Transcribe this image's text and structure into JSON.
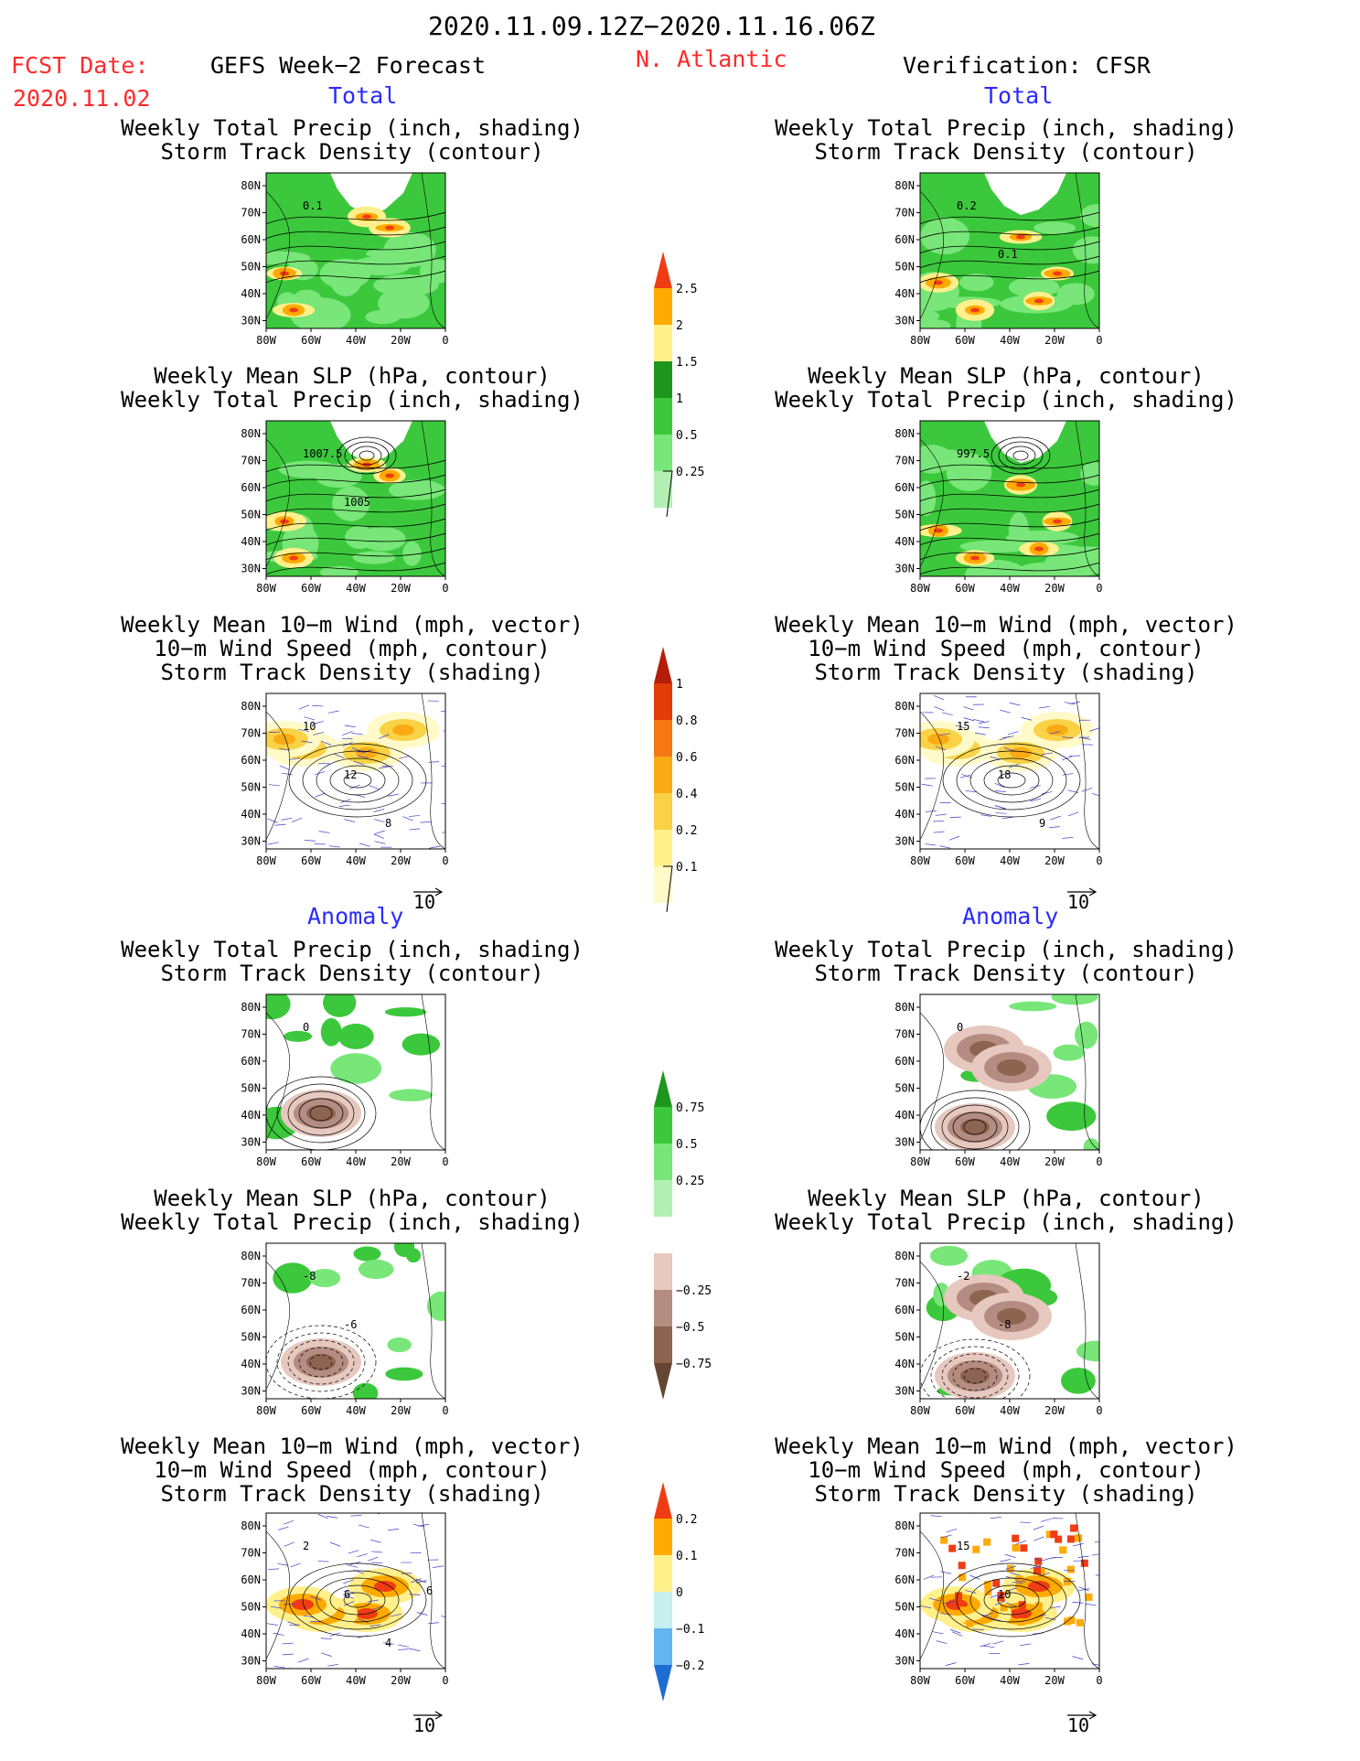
{
  "header": {
    "period": "2020.11.09.12Z−2020.11.16.06Z",
    "fcst_label": "FCST Date:",
    "fcst_date": "2020.11.02",
    "left_title": "GEFS Week−2 Forecast",
    "region": "N. Atlantic",
    "right_title": "Verification: CFSR",
    "total": "Total",
    "anomaly": "Anomaly"
  },
  "axes": {
    "lat_ticks": [
      "80N",
      "70N",
      "60N",
      "50N",
      "40N",
      "30N"
    ],
    "lon_ticks": [
      "80W",
      "60W",
      "40W",
      "20W",
      "0"
    ]
  },
  "vector_ref": "10",
  "panels": [
    {
      "id": "fc-tot-precip-track",
      "title": "Weekly Total Precip (inch, shading)\nStorm Track Density (contour)",
      "kind": "precip",
      "labels": [
        "0.1"
      ]
    },
    {
      "id": "fc-tot-slp-precip",
      "title": "Weekly Mean SLP (hPa, contour)\nWeekly Total Precip (inch, shading)",
      "kind": "slp",
      "labels": [
        "1007.5",
        "1005"
      ]
    },
    {
      "id": "fc-tot-wind-track",
      "title": "Weekly Mean 10−m Wind (mph, vector)\n10−m Wind Speed (mph, contour)\nStorm Track Density (shading)",
      "kind": "wind",
      "labels": [
        "10",
        "12",
        "8"
      ]
    },
    {
      "id": "vf-tot-precip-track",
      "title": "Weekly Total Precip (inch, shading)\nStorm Track Density (contour)",
      "kind": "precip",
      "labels": [
        "0.2",
        "0.1"
      ]
    },
    {
      "id": "vf-tot-slp-precip",
      "title": "Weekly Mean SLP (hPa, contour)\nWeekly Total Precip (inch, shading)",
      "kind": "slp",
      "labels": [
        "997.5"
      ]
    },
    {
      "id": "vf-tot-wind-track",
      "title": "Weekly Mean 10−m Wind (mph, vector)\n10−m Wind Speed (mph, contour)\nStorm Track Density (shading)",
      "kind": "wind",
      "labels": [
        "15",
        "18",
        "9"
      ]
    },
    {
      "id": "fc-anom-precip-track",
      "title": "Weekly Total Precip (inch, shading)\nStorm Track Density (contour)",
      "kind": "aprecip",
      "labels": [
        "0"
      ]
    },
    {
      "id": "fc-anom-slp-precip",
      "title": "Weekly Mean SLP (hPa, contour)\nWeekly Total Precip (inch, shading)",
      "kind": "aslp",
      "labels": [
        "-8",
        "-6"
      ]
    },
    {
      "id": "fc-anom-wind-track",
      "title": "Weekly Mean 10−m Wind (mph, vector)\n10−m Wind Speed (mph, contour)\nStorm Track Density (shading)",
      "kind": "awind",
      "labels": [
        "2",
        "6",
        "4",
        "6"
      ]
    },
    {
      "id": "vf-anom-precip-track",
      "title": "Weekly Total Precip (inch, shading)\nStorm Track Density (contour)",
      "kind": "aprecip",
      "labels": [
        "0"
      ]
    },
    {
      "id": "vf-anom-slp-precip",
      "title": "Weekly Mean SLP (hPa, contour)\nWeekly Total Precip (inch, shading)",
      "kind": "aslp",
      "labels": [
        "-2",
        "-8"
      ]
    },
    {
      "id": "vf-anom-wind-track",
      "title": "Weekly Mean 10−m Wind (mph, vector)\n10−m Wind Speed (mph, contour)\nStorm Track Density (shading)",
      "kind": "awind",
      "labels": [
        "15",
        "10"
      ]
    }
  ],
  "colorbars": [
    {
      "id": "precip-total",
      "levels": [
        "0.25",
        "0.5",
        "1",
        "1.5",
        "2",
        "2.5"
      ],
      "colors": [
        "#b4f0b4",
        "#78e678",
        "#3cc83c",
        "#1e961e",
        "#fff08c",
        "#ffaa00",
        "#f03c14"
      ],
      "tail": true
    },
    {
      "id": "track-total",
      "levels": [
        "0.1",
        "0.2",
        "0.4",
        "0.6",
        "0.8",
        "1"
      ],
      "colors": [
        "#fffac8",
        "#fff08c",
        "#fad246",
        "#faaa14",
        "#f57814",
        "#e13c0a",
        "#b41e0a"
      ],
      "tail": true
    },
    {
      "id": "precip-anom",
      "levels": [
        "0.75",
        "0.5",
        "0.25",
        "−0.25",
        "−0.5",
        "−0.75"
      ],
      "colors": [
        "#1e961e",
        "#3cc83c",
        "#78e678",
        "#b4f0b4",
        "#ffffff",
        "#e6c8be",
        "#b48c82",
        "#8c6450",
        "#644632"
      ]
    },
    {
      "id": "track-anom",
      "levels": [
        "0.2",
        "0.1",
        "0",
        "−0.1",
        "−0.2"
      ],
      "colors": [
        "#f03c14",
        "#ffaa00",
        "#fff08c",
        "#c8f0f0",
        "#64b4f0",
        "#1e6ed2"
      ]
    }
  ],
  "chart_data": [
    {
      "type": "heatmap",
      "panel": "fc-tot-precip-track",
      "variable": "weekly total precip",
      "units": "inch",
      "note": "forecast total"
    },
    {
      "type": "heatmap",
      "panel": "fc-tot-slp-precip",
      "variable": "weekly mean SLP / precip",
      "units": "hPa / inch"
    },
    {
      "type": "heatmap",
      "panel": "fc-tot-wind-track",
      "variable": "10-m wind / storm track density",
      "units": "mph"
    },
    {
      "type": "heatmap",
      "panel": "vf-tot-precip-track",
      "variable": "weekly total precip",
      "units": "inch"
    },
    {
      "type": "heatmap",
      "panel": "vf-tot-slp-precip",
      "variable": "weekly mean SLP / precip",
      "units": "hPa / inch"
    },
    {
      "type": "heatmap",
      "panel": "vf-tot-wind-track",
      "variable": "10-m wind / storm track density",
      "units": "mph"
    },
    {
      "type": "heatmap",
      "panel": "fc-anom-precip-track",
      "variable": "precip anomaly",
      "units": "inch"
    },
    {
      "type": "heatmap",
      "panel": "fc-anom-slp-precip",
      "variable": "SLP anomaly",
      "units": "hPa"
    },
    {
      "type": "heatmap",
      "panel": "fc-anom-wind-track",
      "variable": "wind anomaly",
      "units": "mph"
    },
    {
      "type": "heatmap",
      "panel": "vf-anom-precip-track",
      "variable": "precip anomaly",
      "units": "inch"
    },
    {
      "type": "heatmap",
      "panel": "vf-anom-slp-precip",
      "variable": "SLP anomaly",
      "units": "hPa"
    },
    {
      "type": "heatmap",
      "panel": "vf-anom-wind-track",
      "variable": "wind anomaly",
      "units": "mph"
    }
  ]
}
